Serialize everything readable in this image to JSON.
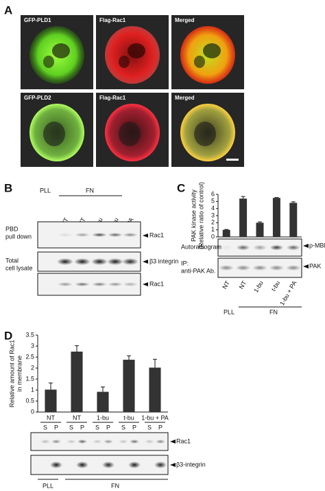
{
  "panel_labels": [
    "A",
    "B",
    "C",
    "D"
  ],
  "panel_a": {
    "rows": [
      [
        "GFP-PLD1",
        "Flag-Rac1",
        "Merged"
      ],
      [
        "GFP-PLD2",
        "Flag-Rac1",
        "Merged"
      ]
    ]
  },
  "panel_b": {
    "groups": [
      "PLL",
      "FN"
    ],
    "lanes": [
      "NT",
      "NT",
      "t-bu",
      "t-bu",
      "t-bu + PA"
    ],
    "sections": [
      "PBD",
      "pull down",
      "Total",
      "cell lysate"
    ],
    "bands": [
      "Rac1",
      "β3 integrin",
      "Rac1"
    ]
  },
  "chart_data": [
    {
      "type": "bar",
      "y_label": [
        "PAK kinase activity",
        "(Relative ratio of control)"
      ],
      "categories": [
        "NT",
        "NT",
        "1-bu",
        "t-bu",
        "1-bu + PA"
      ],
      "values": [
        1.0,
        5.4,
        2.0,
        5.5,
        4.8
      ],
      "errors": [
        0.05,
        0.3,
        0.12,
        0.05,
        0.15
      ],
      "color": "#333333",
      "ylim": [
        0,
        6
      ],
      "yticks": [
        0,
        1,
        2,
        3,
        4,
        5,
        6
      ],
      "blot_labels": [
        "Autoradiogram",
        "IP:",
        "anti-PAK Ab."
      ],
      "bands": [
        "p-MBP",
        "PAK"
      ],
      "groups": [
        "PLL",
        "FN"
      ]
    },
    {
      "type": "bar",
      "y_label": [
        "Relative amount of Rac1",
        "in membrane"
      ],
      "categories": [
        "NT",
        "NT",
        "1-bu",
        "t-bu",
        "1-bu + PA"
      ],
      "values": [
        1.02,
        2.75,
        0.92,
        2.38,
        2.02
      ],
      "errors": [
        0.3,
        0.27,
        0.22,
        0.18,
        0.38
      ],
      "color": "#333333",
      "ylim": [
        0,
        3.5
      ],
      "yticks": [
        0,
        0.5,
        1,
        1.5,
        2,
        2.5,
        3,
        3.5
      ],
      "fractions": [
        "S",
        "P",
        "S",
        "P",
        "S",
        "P",
        "S",
        "P",
        "S",
        "P"
      ],
      "bands": [
        "Rac1",
        "β3-integrin"
      ],
      "groups": [
        "PLL",
        "FN"
      ]
    }
  ]
}
